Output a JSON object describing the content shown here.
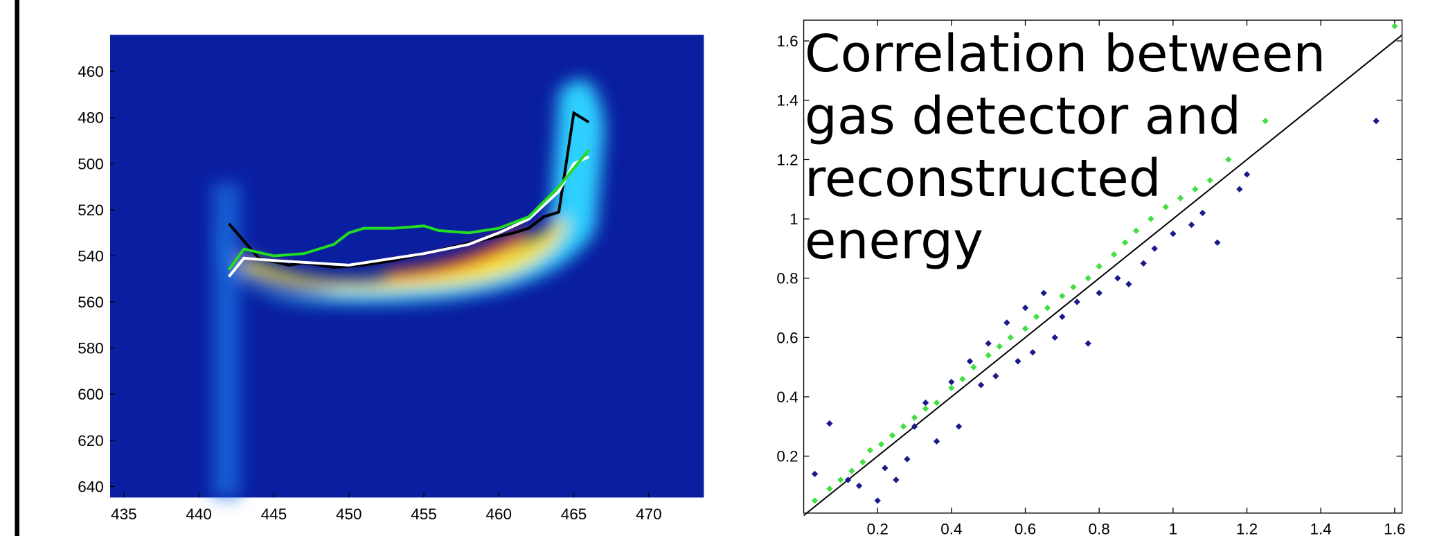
{
  "chart_data": [
    {
      "type": "line",
      "xlim": [
        434.08,
        473.67
      ],
      "ylim": [
        644.8,
        444.1
      ],
      "xticks": [
        435,
        440,
        445,
        450,
        455,
        460,
        465,
        470
      ],
      "yticks": [
        460,
        480,
        500,
        520,
        540,
        560,
        580,
        600,
        620,
        640
      ],
      "series": [
        {
          "color": "#000000",
          "x": [
            442,
            444,
            446,
            447,
            449,
            451,
            453,
            455,
            457,
            459,
            461,
            462,
            463,
            464,
            465,
            466
          ],
          "values": [
            526,
            541,
            544,
            543,
            545,
            544,
            542,
            539,
            536,
            533,
            530,
            528,
            523,
            521,
            478,
            482
          ]
        },
        {
          "color": "#ffffff",
          "x": [
            442,
            443,
            445,
            450,
            455,
            458,
            460,
            462,
            464,
            465,
            466
          ],
          "values": [
            549,
            541,
            542,
            544,
            539,
            535,
            530,
            524,
            512,
            500,
            497
          ]
        },
        {
          "color": "#22dd22",
          "x": [
            442,
            443,
            445,
            447,
            449,
            450,
            451,
            453,
            455,
            456,
            458,
            460,
            462,
            464,
            466
          ],
          "values": [
            546,
            537,
            540,
            539,
            535,
            530,
            528,
            528,
            527,
            529,
            530,
            528,
            523,
            510,
            494
          ]
        }
      ]
    },
    {
      "type": "scatter",
      "title": [
        "Correlation between",
        "gas detector and",
        "reconstructed",
        "energy"
      ],
      "xlim": [
        0,
        1.62
      ],
      "ylim": [
        0.008,
        1.67
      ],
      "xticks": [
        0.2,
        0.4,
        0.6,
        0.8,
        1,
        1.2,
        1.4,
        1.6
      ],
      "yticks": [
        0.2,
        0.4,
        0.6,
        0.8,
        1,
        1.2,
        1.4,
        1.6
      ],
      "lines": [
        {
          "color": "#000000",
          "x": [
            0,
            1.62
          ],
          "values": [
            0,
            1.62
          ]
        }
      ],
      "series": [
        {
          "color": "#1a1a8c",
          "x": [
            0.03,
            0.07,
            0.12,
            0.15,
            0.2,
            0.22,
            0.25,
            0.28,
            0.3,
            0.33,
            0.36,
            0.4,
            0.42,
            0.45,
            0.48,
            0.5,
            0.52,
            0.55,
            0.58,
            0.6,
            0.62,
            0.65,
            0.68,
            0.7,
            0.74,
            0.77,
            0.8,
            0.85,
            0.88,
            0.92,
            0.95,
            1.0,
            1.05,
            1.08,
            1.12,
            1.18,
            1.2,
            1.55
          ],
          "values": [
            0.14,
            0.31,
            0.12,
            0.1,
            0.05,
            0.16,
            0.12,
            0.19,
            0.3,
            0.38,
            0.25,
            0.45,
            0.3,
            0.52,
            0.44,
            0.58,
            0.47,
            0.65,
            0.52,
            0.7,
            0.55,
            0.75,
            0.6,
            0.67,
            0.72,
            0.58,
            0.75,
            0.8,
            0.78,
            0.85,
            0.9,
            0.95,
            0.98,
            1.02,
            0.92,
            1.1,
            1.15,
            1.33
          ]
        },
        {
          "color": "#44dd44",
          "x": [
            0.03,
            0.07,
            0.1,
            0.13,
            0.16,
            0.18,
            0.21,
            0.24,
            0.27,
            0.3,
            0.33,
            0.36,
            0.4,
            0.43,
            0.46,
            0.5,
            0.53,
            0.56,
            0.6,
            0.63,
            0.66,
            0.7,
            0.73,
            0.77,
            0.8,
            0.84,
            0.87,
            0.9,
            0.94,
            0.98,
            1.02,
            1.06,
            1.1,
            1.15,
            1.25,
            1.6
          ],
          "values": [
            0.05,
            0.09,
            0.12,
            0.15,
            0.18,
            0.22,
            0.24,
            0.27,
            0.3,
            0.33,
            0.36,
            0.38,
            0.43,
            0.46,
            0.5,
            0.54,
            0.57,
            0.6,
            0.63,
            0.67,
            0.7,
            0.74,
            0.77,
            0.8,
            0.84,
            0.88,
            0.92,
            0.96,
            1.0,
            1.04,
            1.07,
            1.1,
            1.13,
            1.2,
            1.33,
            1.65
          ]
        }
      ]
    }
  ]
}
